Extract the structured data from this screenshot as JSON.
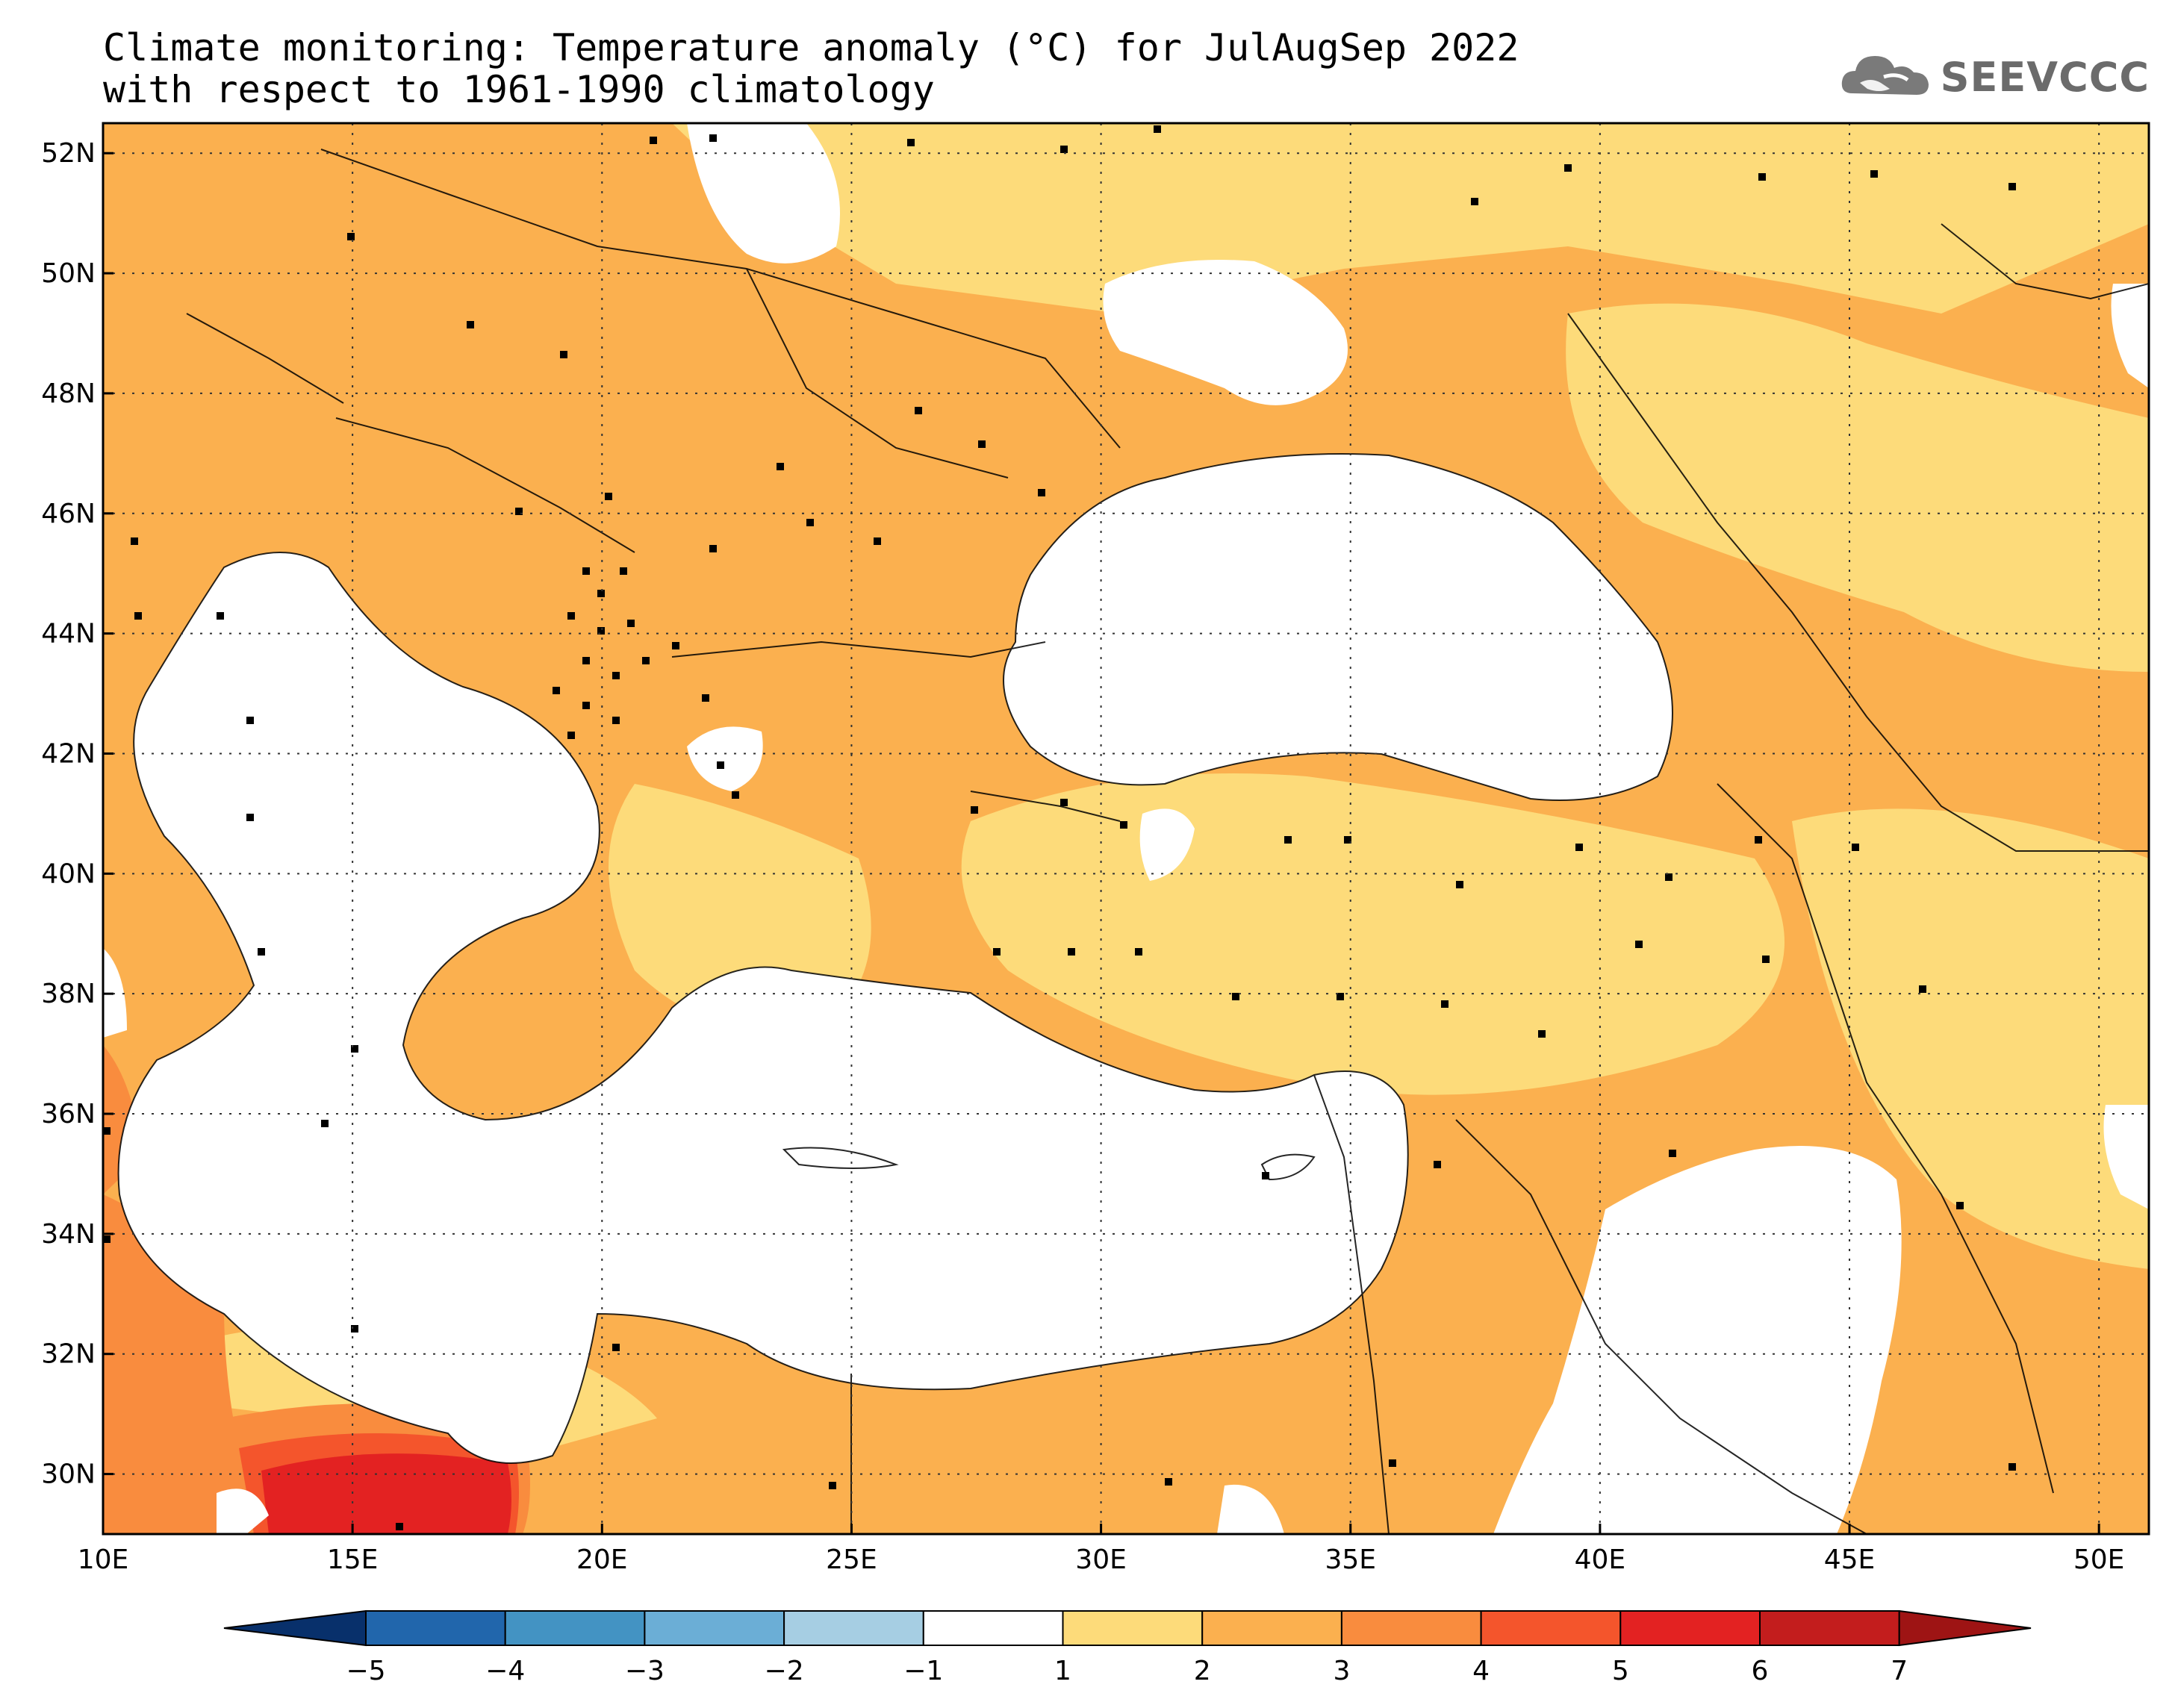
{
  "title": {
    "line1": "Climate monitoring: Temperature anomaly (°C) for JulAugSep 2022",
    "line2": "with respect to 1961-1990 climatology"
  },
  "logo": {
    "text": "SEEVCCC",
    "icon": "cloud-icon"
  },
  "map": {
    "lon_range": [
      10,
      51
    ],
    "lat_range": [
      29,
      52.5
    ],
    "lon_ticks": [
      "10E",
      "15E",
      "20E",
      "25E",
      "30E",
      "35E",
      "40E",
      "45E",
      "50E"
    ],
    "lat_ticks": [
      "52N",
      "50N",
      "48N",
      "46N",
      "44N",
      "42N",
      "40N",
      "38N",
      "36N",
      "34N",
      "32N",
      "30N"
    ],
    "grid": "dotted",
    "stations_shown": true
  },
  "colorbar": {
    "labels": [
      "-5",
      "-4",
      "-3",
      "-2",
      "-1",
      "1",
      "2",
      "3",
      "4",
      "5",
      "6",
      "7"
    ],
    "colors": {
      "lt_min5": "#08306b",
      "min5_min4": "#2166ac",
      "min4_min3": "#4393c3",
      "min3_min2": "#6baed6",
      "min2_min1": "#a6cee3",
      "min1_1": "#ffffff",
      "1_2": "#fddb7a",
      "2_3": "#fbb04f",
      "3_4": "#f98c3e",
      "4_5": "#f4552c",
      "5_6": "#e32222",
      "6_7": "#c31d1d",
      "gt_7": "#9e1414"
    }
  }
}
